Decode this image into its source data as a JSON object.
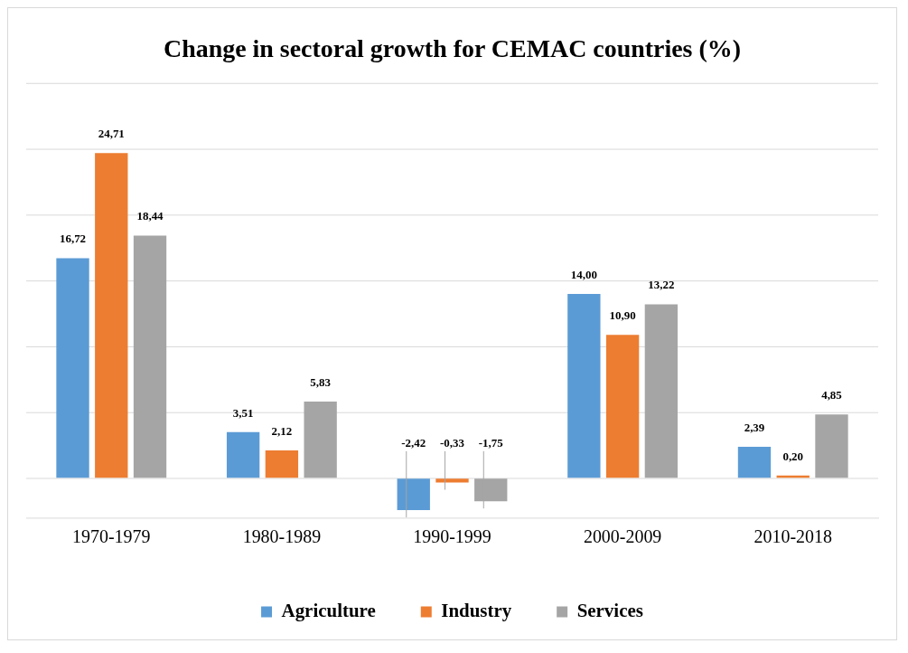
{
  "chart_data": {
    "type": "bar",
    "title": "Change in sectoral growth for CEMAC countries (%)",
    "categories": [
      "1970-1979",
      "1980-1989",
      "1990-1999",
      "2000-2009",
      "2010-2018"
    ],
    "series": [
      {
        "name": "Agriculture",
        "color": "#5b9bd5",
        "values": [
          16.72,
          3.51,
          -2.42,
          14.0,
          2.39
        ],
        "value_labels": [
          "16,72",
          "3,51",
          "-2,42",
          "14,00",
          "2,39"
        ]
      },
      {
        "name": "Industry",
        "color": "#ed7d31",
        "values": [
          24.71,
          2.12,
          -0.33,
          10.9,
          0.2
        ],
        "value_labels": [
          "24,71",
          "2,12",
          "-0,33",
          "10,90",
          "0,20"
        ]
      },
      {
        "name": "Services",
        "color": "#a5a5a5",
        "values": [
          18.44,
          5.83,
          -1.75,
          13.22,
          4.85
        ],
        "value_labels": [
          "18,44",
          "5,83",
          "-1,75",
          "13,22",
          "4,85"
        ]
      }
    ],
    "ylim": [
      -3,
      30
    ],
    "yticks": [
      {
        "value": 0,
        "label": null
      },
      {
        "value": 5,
        "label": null
      },
      {
        "value": 10,
        "label": null
      },
      {
        "value": 15,
        "label": null
      },
      {
        "value": 20,
        "label": null
      },
      {
        "value": 25,
        "label": null
      },
      {
        "value": 30,
        "label": null
      }
    ],
    "tick_labels": "x",
    "grid": "y",
    "legend": "bottom"
  }
}
